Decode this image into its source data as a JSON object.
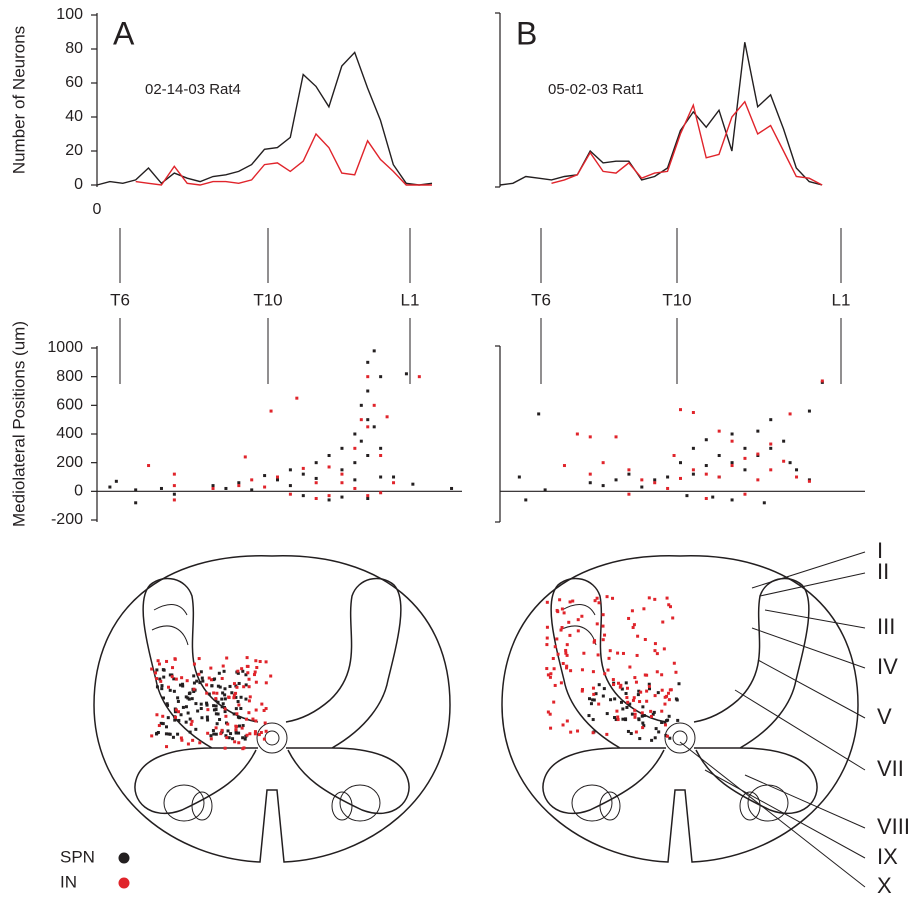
{
  "chart_data": [
    {
      "type": "line",
      "panel_label": "A",
      "annotation": "02-14-03 Rat4",
      "y_label": "Number of Neurons",
      "x": [
        0,
        1,
        2,
        3,
        4,
        5,
        6,
        7,
        8,
        9,
        10,
        11,
        12,
        13,
        14,
        15,
        16,
        17,
        18,
        19,
        20,
        21,
        22,
        23,
        24,
        25,
        26
      ],
      "xlim": [
        0,
        26
      ],
      "xticks": [
        0
      ],
      "ylim": [
        0,
        100
      ],
      "yticks": [
        0,
        20,
        40,
        60,
        80,
        100
      ],
      "series": [
        {
          "name": "SPN",
          "color": "#231f20",
          "values": [
            0,
            2,
            1,
            3,
            10,
            1,
            7,
            4,
            2,
            5,
            6,
            8,
            12,
            21,
            22,
            28,
            65,
            58,
            46,
            70,
            78,
            57,
            38,
            12,
            1,
            0,
            1
          ]
        },
        {
          "name": "IN",
          "color": "#e0242b",
          "values": [
            null,
            null,
            null,
            2,
            1,
            0,
            11,
            1,
            0,
            2,
            2,
            1,
            3,
            12,
            13,
            8,
            14,
            30,
            22,
            7,
            6,
            26,
            15,
            8,
            0,
            0,
            0
          ]
        }
      ]
    },
    {
      "type": "line",
      "panel_label": "B",
      "annotation": "05-02-03 Rat1",
      "x": [
        0,
        1,
        2,
        3,
        4,
        5,
        6,
        7,
        8,
        9,
        10,
        11,
        12,
        13,
        14,
        15,
        16,
        17,
        18,
        19,
        20,
        21,
        22,
        23,
        24,
        25
      ],
      "xlim": [
        0,
        26
      ],
      "ylim": [
        0,
        100
      ],
      "series": [
        {
          "name": "SPN",
          "color": "#231f20",
          "values": [
            0,
            1,
            5,
            4,
            3,
            5,
            6,
            20,
            13,
            14,
            14,
            3,
            5,
            10,
            32,
            43,
            34,
            44,
            20,
            84,
            46,
            53,
            33,
            10,
            2,
            0
          ]
        },
        {
          "name": "IN",
          "color": "#e0242b",
          "values": [
            null,
            null,
            null,
            null,
            1,
            3,
            6,
            19,
            8,
            7,
            13,
            4,
            7,
            8,
            30,
            47,
            16,
            18,
            40,
            49,
            30,
            35,
            20,
            5,
            4,
            0
          ]
        }
      ]
    },
    {
      "type": "scatter",
      "y_label": "Mediolateral Positions (um)",
      "xlim": [
        0,
        28
      ],
      "ylim": [
        -200,
        1000
      ],
      "yticks": [
        -200,
        0,
        200,
        400,
        600,
        800,
        1000
      ],
      "series": [
        {
          "name": "SPN",
          "color": "#231f20",
          "x": [
            1,
            1.5,
            3,
            3,
            5,
            6,
            9,
            10,
            11,
            12,
            13,
            14,
            15,
            15,
            16,
            16,
            17,
            17,
            18,
            18,
            19,
            19,
            19,
            20,
            20,
            20,
            20.5,
            20.5,
            21,
            21,
            21,
            21,
            21,
            21.5,
            21.5,
            22,
            22,
            22,
            23,
            24,
            24.5,
            27.5
          ],
          "values": [
            30,
            70,
            10,
            -80,
            20,
            -20,
            40,
            20,
            60,
            10,
            110,
            80,
            40,
            150,
            120,
            -30,
            200,
            90,
            250,
            -60,
            300,
            150,
            -40,
            400,
            200,
            80,
            600,
            350,
            900,
            700,
            500,
            250,
            -50,
            980,
            450,
            800,
            300,
            100,
            100,
            820,
            50,
            20
          ]
        },
        {
          "name": "IN",
          "color": "#e0242b",
          "x": [
            4,
            6,
            6,
            6,
            9,
            11,
            11.5,
            12,
            13,
            13.5,
            14,
            15,
            15.5,
            16,
            17,
            17,
            18,
            18,
            19,
            19,
            20,
            20,
            20.5,
            21,
            21,
            21,
            21.5,
            22,
            22,
            22.5,
            23,
            25
          ],
          "values": [
            180,
            -60,
            120,
            40,
            20,
            40,
            240,
            80,
            30,
            560,
            100,
            -20,
            650,
            160,
            -50,
            60,
            170,
            -30,
            120,
            60,
            300,
            20,
            500,
            800,
            450,
            -30,
            600,
            250,
            -10,
            520,
            60,
            800
          ]
        }
      ]
    },
    {
      "type": "scatter",
      "xlim": [
        0,
        28
      ],
      "ylim": [
        -200,
        1000
      ],
      "series": [
        {
          "name": "SPN",
          "color": "#231f20",
          "x": [
            1.5,
            2,
            3,
            3.5,
            7,
            8,
            9,
            10,
            11,
            12,
            13,
            14,
            14.5,
            15,
            15,
            16,
            16,
            16.5,
            17,
            17,
            18,
            18,
            18,
            19,
            19,
            20,
            20,
            20.5,
            21,
            21,
            22,
            22.5,
            23,
            24,
            24,
            25
          ],
          "values": [
            100,
            -60,
            540,
            10,
            60,
            40,
            80,
            120,
            30,
            80,
            100,
            200,
            -30,
            300,
            120,
            360,
            180,
            -40,
            250,
            100,
            400,
            200,
            -60,
            300,
            150,
            420,
            250,
            -80,
            500,
            300,
            350,
            200,
            150,
            80,
            560,
            760
          ]
        },
        {
          "name": "IN",
          "color": "#e0242b",
          "x": [
            5,
            6,
            7,
            7,
            8,
            9,
            10,
            10,
            11,
            12,
            13,
            13.5,
            14,
            14,
            15,
            15,
            16,
            16,
            17,
            17,
            18,
            18,
            19,
            19,
            20,
            20,
            21,
            21,
            22,
            22.5,
            23,
            24,
            25
          ],
          "values": [
            180,
            400,
            380,
            120,
            200,
            380,
            -20,
            150,
            80,
            60,
            20,
            250,
            570,
            90,
            550,
            150,
            120,
            -50,
            420,
            100,
            180,
            350,
            230,
            -20,
            260,
            80,
            330,
            150,
            210,
            540,
            100,
            70,
            770
          ]
        }
      ]
    }
  ],
  "segments": [
    [
      "T6",
      "T10",
      "L1"
    ],
    [
      "T6",
      "T10",
      "L1"
    ]
  ],
  "laminae": [
    "I",
    "II",
    "III",
    "IV",
    "V",
    "VII",
    "VIII",
    "IX",
    "X"
  ]
}
